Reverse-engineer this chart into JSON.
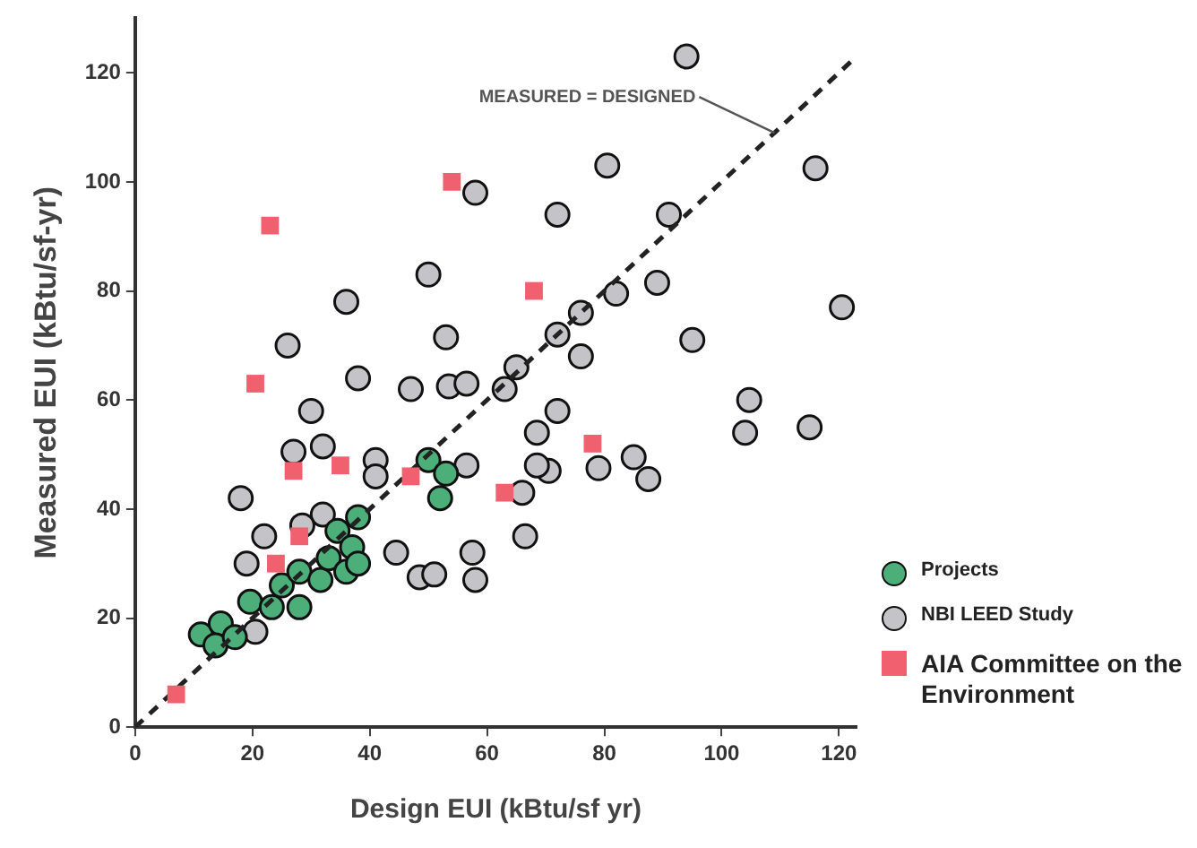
{
  "chart_data": {
    "type": "scatter",
    "xlabel": "Design EUI (kBtu/sf yr)",
    "ylabel": "Measured EUI (kBtu/sf-yr)",
    "xlim": [
      0,
      123
    ],
    "ylim": [
      0,
      130
    ],
    "xticks": [
      0,
      20,
      40,
      60,
      80,
      100,
      120
    ],
    "yticks": [
      0,
      20,
      40,
      60,
      80,
      100,
      120
    ],
    "grid": false,
    "legend": "bottom right",
    "annotations": [
      {
        "text": "MEASURED = DESIGNED",
        "x": 109,
        "y": 109
      }
    ],
    "series": [
      {
        "type": "line",
        "color": "#222222",
        "line_style": "dashed",
        "marker": "none",
        "x": [
          0,
          122
        ],
        "values": [
          0,
          122
        ]
      },
      {
        "name": "Projects",
        "color": "#4caf7a",
        "marker": "circle",
        "x": [
          11.2,
          14.6,
          13.7,
          17,
          19.6,
          23.3,
          25,
          28,
          28,
          31.6,
          33,
          34.5,
          36,
          37,
          38,
          38,
          50,
          53,
          52
        ],
        "values": [
          17,
          19,
          15,
          16.5,
          23,
          22,
          26,
          28.5,
          22,
          27,
          31,
          36,
          28.5,
          33,
          38.5,
          30,
          49,
          46.5,
          42
        ]
      },
      {
        "name": "NBI LEED Study",
        "color": "#c4c4c8",
        "marker": "circle",
        "x": [
          58,
          50,
          36,
          26,
          53,
          38,
          47,
          53.5,
          56.5,
          94,
          80.5,
          72,
          91,
          116,
          120.5,
          89,
          82,
          76,
          72,
          95,
          76,
          65,
          63,
          104.7,
          104,
          115,
          72,
          68.5,
          70.5,
          68.5,
          79,
          85,
          87.5,
          66,
          66.5,
          57.5,
          58,
          56.5,
          30,
          27,
          32,
          41,
          41,
          18,
          32,
          22,
          19,
          28.5,
          44.5,
          48.5,
          51,
          20.5
        ],
        "values": [
          98,
          83,
          78,
          70,
          71.5,
          64,
          62,
          62.5,
          63,
          123,
          103,
          94,
          94,
          102.5,
          77,
          81.5,
          79.5,
          76,
          72,
          71,
          68,
          66,
          62,
          60,
          54,
          55,
          58,
          54,
          47,
          48,
          47.5,
          49.5,
          45.5,
          43,
          35,
          32,
          27,
          48,
          58,
          50.5,
          51.5,
          49,
          46,
          42,
          39,
          35,
          30,
          37,
          32,
          27.5,
          28,
          17.5
        ]
      },
      {
        "name": "AIA Committee on the Environment",
        "color": "#f0606e",
        "marker": "square",
        "x": [
          7,
          23,
          54,
          20.5,
          27,
          35,
          28,
          47,
          68,
          63,
          78,
          24
        ],
        "values": [
          6,
          92,
          100,
          63,
          47,
          48,
          35,
          46,
          80,
          43,
          52,
          30
        ]
      }
    ]
  }
}
